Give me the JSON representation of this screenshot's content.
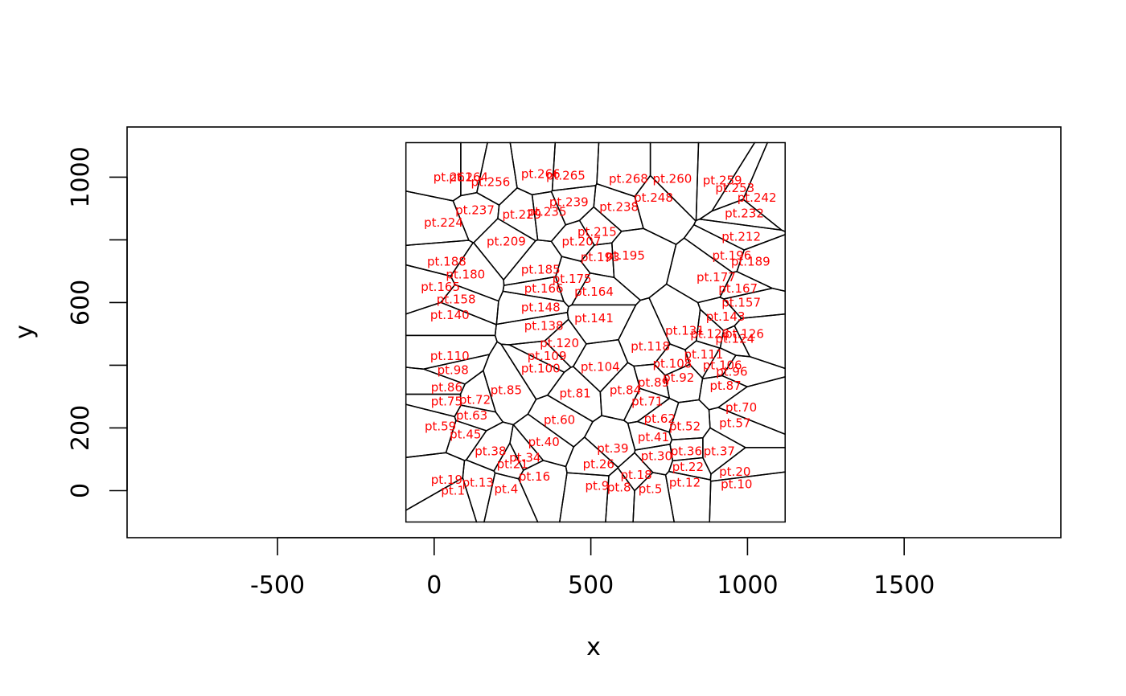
{
  "chart_data": {
    "type": "scatter",
    "subtype": "voronoi-tessellation",
    "title": "",
    "xlabel": "x",
    "ylabel": "y",
    "xlim": [
      -980,
      2000
    ],
    "ylim": [
      -150,
      1160
    ],
    "x_ticks": [
      -500,
      0,
      500,
      1000,
      1500
    ],
    "y_ticks": [
      0,
      200,
      600,
      1000
    ],
    "y_minor_ticks": [
      400,
      800
    ],
    "grid": false,
    "legend": "none",
    "label_color": "#ff0000",
    "edge_color": "#000000",
    "labeled_points": [
      {
        "label": "pt.1",
        "x": 60,
        "y": 0
      },
      {
        "label": "pt.4",
        "x": 230,
        "y": 5
      },
      {
        "label": "pt.5",
        "x": 690,
        "y": 5
      },
      {
        "label": "pt.8",
        "x": 590,
        "y": 10
      },
      {
        "label": "pt.9",
        "x": 520,
        "y": 15
      },
      {
        "label": "pt.10",
        "x": 965,
        "y": 20
      },
      {
        "label": "pt.12",
        "x": 800,
        "y": 25
      },
      {
        "label": "pt.13",
        "x": 140,
        "y": 25
      },
      {
        "label": "pt.16",
        "x": 320,
        "y": 45
      },
      {
        "label": "pt.18",
        "x": 645,
        "y": 50
      },
      {
        "label": "pt.19",
        "x": 40,
        "y": 35
      },
      {
        "label": "pt.20",
        "x": 960,
        "y": 60
      },
      {
        "label": "pt.21",
        "x": 250,
        "y": 85
      },
      {
        "label": "pt.22",
        "x": 810,
        "y": 75
      },
      {
        "label": "pt.26",
        "x": 525,
        "y": 85
      },
      {
        "label": "pt.30",
        "x": 710,
        "y": 110
      },
      {
        "label": "pt.34",
        "x": 290,
        "y": 105
      },
      {
        "label": "pt.36",
        "x": 805,
        "y": 125
      },
      {
        "label": "pt.37",
        "x": 910,
        "y": 125
      },
      {
        "label": "pt.38",
        "x": 180,
        "y": 125
      },
      {
        "label": "pt.39",
        "x": 570,
        "y": 135
      },
      {
        "label": "pt.40",
        "x": 350,
        "y": 155
      },
      {
        "label": "pt.41",
        "x": 700,
        "y": 170
      },
      {
        "label": "pt.45",
        "x": 100,
        "y": 180
      },
      {
        "label": "pt.52",
        "x": 800,
        "y": 205
      },
      {
        "label": "pt.57",
        "x": 960,
        "y": 215
      },
      {
        "label": "pt.59",
        "x": 20,
        "y": 205
      },
      {
        "label": "pt.60",
        "x": 400,
        "y": 225
      },
      {
        "label": "pt.62",
        "x": 720,
        "y": 230
      },
      {
        "label": "pt.63",
        "x": 120,
        "y": 240
      },
      {
        "label": "pt.70",
        "x": 980,
        "y": 265
      },
      {
        "label": "pt.71",
        "x": 680,
        "y": 285
      },
      {
        "label": "pt.72",
        "x": 130,
        "y": 290
      },
      {
        "label": "pt.75",
        "x": 40,
        "y": 285
      },
      {
        "label": "pt.81",
        "x": 450,
        "y": 310
      },
      {
        "label": "pt.84",
        "x": 610,
        "y": 320
      },
      {
        "label": "pt.85",
        "x": 230,
        "y": 320
      },
      {
        "label": "pt.86",
        "x": 40,
        "y": 330
      },
      {
        "label": "pt.87",
        "x": 930,
        "y": 335
      },
      {
        "label": "pt.89",
        "x": 700,
        "y": 345
      },
      {
        "label": "pt.92",
        "x": 780,
        "y": 360
      },
      {
        "label": "pt.96",
        "x": 950,
        "y": 380
      },
      {
        "label": "pt.98",
        "x": 60,
        "y": 385
      },
      {
        "label": "pt.100",
        "x": 340,
        "y": 390
      },
      {
        "label": "pt.104",
        "x": 530,
        "y": 395
      },
      {
        "label": "pt.106",
        "x": 920,
        "y": 400
      },
      {
        "label": "pt.108",
        "x": 760,
        "y": 405
      },
      {
        "label": "pt.109",
        "x": 360,
        "y": 430
      },
      {
        "label": "pt.110",
        "x": 50,
        "y": 430
      },
      {
        "label": "pt.111",
        "x": 860,
        "y": 435
      },
      {
        "label": "pt.118",
        "x": 690,
        "y": 460
      },
      {
        "label": "pt.120",
        "x": 400,
        "y": 470
      },
      {
        "label": "pt.124",
        "x": 960,
        "y": 485
      },
      {
        "label": "pt.126",
        "x": 990,
        "y": 500
      },
      {
        "label": "pt.128",
        "x": 880,
        "y": 500
      },
      {
        "label": "pt.131",
        "x": 800,
        "y": 510
      },
      {
        "label": "pt.138",
        "x": 350,
        "y": 525
      },
      {
        "label": "pt.140",
        "x": 50,
        "y": 560
      },
      {
        "label": "pt.141",
        "x": 510,
        "y": 550
      },
      {
        "label": "pt.143",
        "x": 930,
        "y": 555
      },
      {
        "label": "pt.148",
        "x": 340,
        "y": 585
      },
      {
        "label": "pt.157",
        "x": 980,
        "y": 600
      },
      {
        "label": "pt.158",
        "x": 70,
        "y": 610
      },
      {
        "label": "pt.164",
        "x": 510,
        "y": 635
      },
      {
        "label": "pt.165",
        "x": 20,
        "y": 650
      },
      {
        "label": "pt.166",
        "x": 350,
        "y": 645
      },
      {
        "label": "pt.167",
        "x": 970,
        "y": 645
      },
      {
        "label": "pt.175",
        "x": 440,
        "y": 675
      },
      {
        "label": "pt.177",
        "x": 900,
        "y": 680
      },
      {
        "label": "pt.180",
        "x": 100,
        "y": 690
      },
      {
        "label": "pt.185",
        "x": 340,
        "y": 705
      },
      {
        "label": "pt.188",
        "x": 40,
        "y": 730
      },
      {
        "label": "pt.189",
        "x": 1010,
        "y": 730
      },
      {
        "label": "pt.193",
        "x": 530,
        "y": 745
      },
      {
        "label": "pt.195",
        "x": 610,
        "y": 750
      },
      {
        "label": "pt.196",
        "x": 950,
        "y": 750
      },
      {
        "label": "pt.207",
        "x": 470,
        "y": 795
      },
      {
        "label": "pt.209",
        "x": 230,
        "y": 795
      },
      {
        "label": "pt.212",
        "x": 980,
        "y": 810
      },
      {
        "label": "pt.215",
        "x": 520,
        "y": 825
      },
      {
        "label": "pt.224",
        "x": 30,
        "y": 855
      },
      {
        "label": "pt.229",
        "x": 280,
        "y": 880
      },
      {
        "label": "pt.232",
        "x": 990,
        "y": 885
      },
      {
        "label": "pt.235",
        "x": 360,
        "y": 890
      },
      {
        "label": "pt.237",
        "x": 130,
        "y": 895
      },
      {
        "label": "pt.238",
        "x": 590,
        "y": 905
      },
      {
        "label": "pt.239",
        "x": 430,
        "y": 920
      },
      {
        "label": "pt.242",
        "x": 1030,
        "y": 935
      },
      {
        "label": "pt.248",
        "x": 700,
        "y": 935
      },
      {
        "label": "pt.253",
        "x": 960,
        "y": 965
      },
      {
        "label": "pt.256",
        "x": 180,
        "y": 985
      },
      {
        "label": "pt.259",
        "x": 920,
        "y": 990
      },
      {
        "label": "pt.260",
        "x": 760,
        "y": 995
      },
      {
        "label": "pt.261",
        "x": 60,
        "y": 1000
      },
      {
        "label": "pt.264",
        "x": 110,
        "y": 1000
      },
      {
        "label": "pt.265",
        "x": 420,
        "y": 1005
      },
      {
        "label": "pt.266",
        "x": 340,
        "y": 1010
      },
      {
        "label": "pt.268",
        "x": 620,
        "y": 995
      }
    ]
  }
}
